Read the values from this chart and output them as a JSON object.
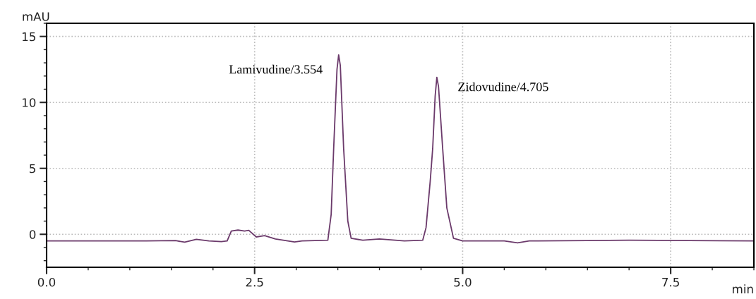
{
  "chart_data": {
    "type": "line",
    "xlabel": "min",
    "ylabel": "mAU",
    "xlim": [
      0,
      8.5
    ],
    "xticks": [
      {
        "value": 0,
        "label": "0.0"
      },
      2.5,
      {
        "value": 5,
        "label": "5.0"
      },
      7.5
    ],
    "ylim": [
      -2.5,
      16
    ],
    "yticks": [
      0,
      5,
      10,
      15
    ],
    "grid": true,
    "marker": "none",
    "line_style": "solid",
    "series": [
      {
        "color": "#6b3a6b",
        "x": [
          0,
          1.2,
          1.55,
          1.66,
          1.8,
          1.95,
          2.1,
          2.17,
          2.22,
          2.3,
          2.38,
          2.43,
          2.52,
          2.62,
          2.75,
          2.98,
          3.07,
          3.38,
          3.42,
          3.45,
          3.49,
          3.51,
          3.53,
          3.57,
          3.62,
          3.66,
          3.8,
          4.0,
          4.3,
          4.52,
          4.56,
          4.61,
          4.64,
          4.67,
          4.69,
          4.71,
          4.76,
          4.81,
          4.89,
          5.0,
          5.5,
          5.66,
          5.8,
          6.5,
          7.0,
          8.5
        ],
        "values": [
          -0.5,
          -0.5,
          -0.48,
          -0.6,
          -0.38,
          -0.5,
          -0.55,
          -0.5,
          0.25,
          0.32,
          0.25,
          0.3,
          -0.2,
          -0.1,
          -0.35,
          -0.58,
          -0.5,
          -0.45,
          1.5,
          6.5,
          12.5,
          13.6,
          12.8,
          6.5,
          1.0,
          -0.3,
          -0.45,
          -0.35,
          -0.5,
          -0.45,
          0.5,
          4.0,
          6.5,
          10.5,
          11.9,
          11.2,
          6.5,
          2.0,
          -0.3,
          -0.5,
          -0.5,
          -0.65,
          -0.5,
          -0.48,
          -0.45,
          -0.5
        ]
      }
    ],
    "annotations": [
      {
        "text": "Lamivudine/3.554",
        "x": 3.554,
        "y": 13.6
      },
      {
        "text": "Zidovudine/4.705",
        "x": 4.705,
        "y": 11.9
      }
    ]
  }
}
